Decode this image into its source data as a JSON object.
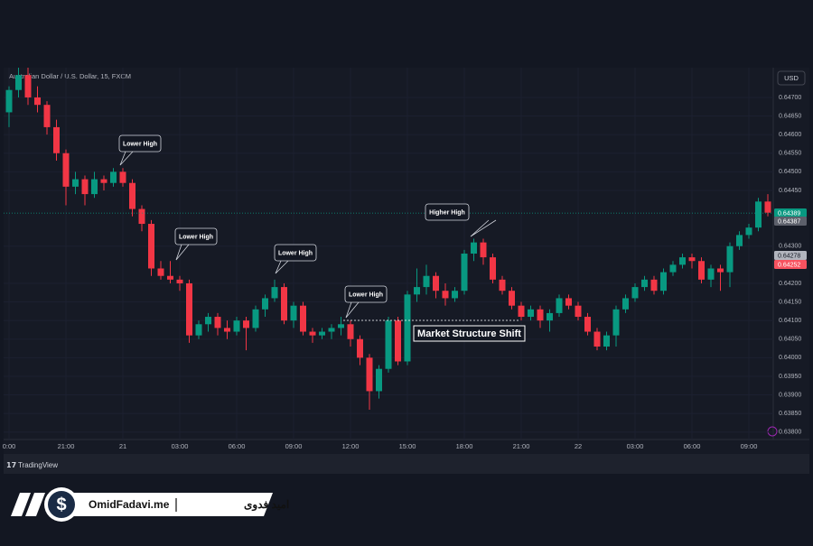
{
  "chart_data": {
    "type": "candlestick",
    "title": "Australian Dollar / U.S. Dollar, 15, FXCM",
    "currency": "USD",
    "up_color": "#089981",
    "down_color": "#f23645",
    "candles": [
      [
        0.6466,
        0.6473,
        0.6462,
        0.6472
      ],
      [
        0.6472,
        0.6478,
        0.647,
        0.6476
      ],
      [
        0.6476,
        0.6478,
        0.6468,
        0.647
      ],
      [
        0.647,
        0.6473,
        0.6466,
        0.6468
      ],
      [
        0.6468,
        0.6469,
        0.646,
        0.6462
      ],
      [
        0.6462,
        0.6464,
        0.6453,
        0.6455
      ],
      [
        0.6455,
        0.6456,
        0.6441,
        0.6446
      ],
      [
        0.6446,
        0.645,
        0.6444,
        0.6448
      ],
      [
        0.6448,
        0.6449,
        0.6441,
        0.6444
      ],
      [
        0.6444,
        0.645,
        0.6443,
        0.6448
      ],
      [
        0.6448,
        0.6449,
        0.6445,
        0.6447
      ],
      [
        0.6447,
        0.6451,
        0.6446,
        0.645
      ],
      [
        0.645,
        0.6451,
        0.6446,
        0.6447
      ],
      [
        0.6447,
        0.6448,
        0.6438,
        0.644
      ],
      [
        0.644,
        0.6441,
        0.6434,
        0.6436
      ],
      [
        0.6436,
        0.6437,
        0.6422,
        0.6424
      ],
      [
        0.6424,
        0.6426,
        0.6421,
        0.6422
      ],
      [
        0.6422,
        0.6426,
        0.642,
        0.6421
      ],
      [
        0.6421,
        0.6422,
        0.6418,
        0.642
      ],
      [
        0.642,
        0.6421,
        0.6404,
        0.6406
      ],
      [
        0.6406,
        0.641,
        0.6405,
        0.6409
      ],
      [
        0.6409,
        0.6412,
        0.6407,
        0.6411
      ],
      [
        0.6411,
        0.6412,
        0.6406,
        0.6408
      ],
      [
        0.6408,
        0.641,
        0.6405,
        0.6407
      ],
      [
        0.6407,
        0.6411,
        0.6406,
        0.641
      ],
      [
        0.641,
        0.6411,
        0.6402,
        0.6408
      ],
      [
        0.6408,
        0.6414,
        0.6407,
        0.6413
      ],
      [
        0.6413,
        0.6417,
        0.6411,
        0.6416
      ],
      [
        0.6416,
        0.6421,
        0.6415,
        0.6419
      ],
      [
        0.6419,
        0.642,
        0.6409,
        0.641
      ],
      [
        0.641,
        0.6415,
        0.6408,
        0.6414
      ],
      [
        0.6414,
        0.6415,
        0.6406,
        0.6407
      ],
      [
        0.6407,
        0.6408,
        0.6404,
        0.6406
      ],
      [
        0.6406,
        0.6408,
        0.6405,
        0.6407
      ],
      [
        0.6407,
        0.6409,
        0.6405,
        0.6408
      ],
      [
        0.6408,
        0.6411,
        0.6406,
        0.6409
      ],
      [
        0.6409,
        0.641,
        0.6403,
        0.6405
      ],
      [
        0.6405,
        0.6406,
        0.6398,
        0.64
      ],
      [
        0.64,
        0.6401,
        0.6386,
        0.6391
      ],
      [
        0.6391,
        0.6398,
        0.6389,
        0.6397
      ],
      [
        0.6397,
        0.6411,
        0.6396,
        0.641
      ],
      [
        0.641,
        0.6411,
        0.6398,
        0.6399
      ],
      [
        0.6399,
        0.6418,
        0.6398,
        0.6417
      ],
      [
        0.6417,
        0.6424,
        0.6415,
        0.6419
      ],
      [
        0.6419,
        0.6425,
        0.6417,
        0.6422
      ],
      [
        0.6422,
        0.6423,
        0.6416,
        0.6418
      ],
      [
        0.6418,
        0.642,
        0.6414,
        0.6416
      ],
      [
        0.6416,
        0.6419,
        0.6415,
        0.6418
      ],
      [
        0.6418,
        0.6429,
        0.6417,
        0.6428
      ],
      [
        0.6428,
        0.6432,
        0.6426,
        0.6431
      ],
      [
        0.6431,
        0.6432,
        0.6425,
        0.6427
      ],
      [
        0.6427,
        0.6428,
        0.642,
        0.6421
      ],
      [
        0.6421,
        0.6422,
        0.6417,
        0.6418
      ],
      [
        0.6418,
        0.6419,
        0.6413,
        0.6414
      ],
      [
        0.6414,
        0.6415,
        0.641,
        0.6411
      ],
      [
        0.6411,
        0.6414,
        0.641,
        0.6413
      ],
      [
        0.6413,
        0.6414,
        0.6408,
        0.641
      ],
      [
        0.641,
        0.6413,
        0.6407,
        0.6412
      ],
      [
        0.6412,
        0.6417,
        0.6411,
        0.6416
      ],
      [
        0.6416,
        0.6417,
        0.6413,
        0.6414
      ],
      [
        0.6414,
        0.6415,
        0.641,
        0.6411
      ],
      [
        0.6411,
        0.6412,
        0.6406,
        0.6407
      ],
      [
        0.6407,
        0.6408,
        0.6402,
        0.6403
      ],
      [
        0.6403,
        0.6407,
        0.6402,
        0.6406
      ],
      [
        0.6406,
        0.6414,
        0.6403,
        0.6413
      ],
      [
        0.6413,
        0.6417,
        0.6412,
        0.6416
      ],
      [
        0.6416,
        0.642,
        0.6415,
        0.6419
      ],
      [
        0.6419,
        0.6422,
        0.6418,
        0.6421
      ],
      [
        0.6421,
        0.6422,
        0.6417,
        0.6418
      ],
      [
        0.6418,
        0.6424,
        0.6417,
        0.6423
      ],
      [
        0.6423,
        0.6426,
        0.6422,
        0.6425
      ],
      [
        0.6425,
        0.6428,
        0.6424,
        0.6427
      ],
      [
        0.6427,
        0.6428,
        0.6424,
        0.6426
      ],
      [
        0.6426,
        0.6427,
        0.642,
        0.6421
      ],
      [
        0.6421,
        0.6425,
        0.6419,
        0.6424
      ],
      [
        0.6424,
        0.6425,
        0.6418,
        0.6423
      ],
      [
        0.6423,
        0.6431,
        0.6419,
        0.643
      ],
      [
        0.643,
        0.6434,
        0.6429,
        0.6433
      ],
      [
        0.6433,
        0.6436,
        0.6432,
        0.6435
      ],
      [
        0.6435,
        0.6443,
        0.6434,
        0.6442
      ],
      [
        0.6442,
        0.6444,
        0.6438,
        0.6439
      ]
    ],
    "ylim": [
      0.6378,
      0.6478
    ],
    "yticks": [
      {
        "value": 0.647,
        "label": "0.64700"
      },
      {
        "value": 0.6465,
        "label": "0.64650"
      },
      {
        "value": 0.646,
        "label": "0.64600"
      },
      {
        "value": 0.6455,
        "label": "0.64550"
      },
      {
        "value": 0.645,
        "label": "0.64500"
      },
      {
        "value": 0.6445,
        "label": "0.64450"
      },
      {
        "value": 0.643,
        "label": "0.64300"
      },
      {
        "value": 0.642,
        "label": "0.64200"
      },
      {
        "value": 0.6415,
        "label": "0.64150"
      },
      {
        "value": 0.641,
        "label": "0.64100"
      },
      {
        "value": 0.6405,
        "label": "0.64050"
      },
      {
        "value": 0.64,
        "label": "0.64000"
      },
      {
        "value": 0.6395,
        "label": "0.63950"
      },
      {
        "value": 0.639,
        "label": "0.63900"
      },
      {
        "value": 0.6385,
        "label": "0.63850"
      },
      {
        "value": 0.638,
        "label": "0.63800"
      }
    ],
    "xticks": [
      {
        "value": 0,
        "label": "0:00"
      },
      {
        "value": 6,
        "label": "21:00"
      },
      {
        "value": 12,
        "label": "21"
      },
      {
        "value": 18,
        "label": "03:00"
      },
      {
        "value": 24,
        "label": "06:00"
      },
      {
        "value": 30,
        "label": "09:00"
      },
      {
        "value": 36,
        "label": "12:00"
      },
      {
        "value": 42,
        "label": "15:00"
      },
      {
        "value": 48,
        "label": "18:00"
      },
      {
        "value": 54,
        "label": "21:00"
      },
      {
        "value": 60,
        "label": "22"
      },
      {
        "value": 66,
        "label": "03:00"
      },
      {
        "value": 72,
        "label": "06:00"
      },
      {
        "value": 78,
        "label": "09:00"
      }
    ],
    "price_labels": [
      {
        "value": 0.64389,
        "color": "#089981"
      },
      {
        "value": 0.64387,
        "color": "#5d606b"
      },
      {
        "value": 0.64278,
        "color": "#b2b5be"
      },
      {
        "value": 0.64252,
        "color": "#f7525f"
      }
    ],
    "annotations": [
      "Lower High",
      "Lower High",
      "Lower High",
      "Lower High",
      "Higher High"
    ],
    "shift_label": "Market Structure Shift"
  },
  "footer": {
    "brand": "TradingView"
  },
  "banner": {
    "site": "OmidFadavi.me",
    "name": "امید فدوی"
  }
}
